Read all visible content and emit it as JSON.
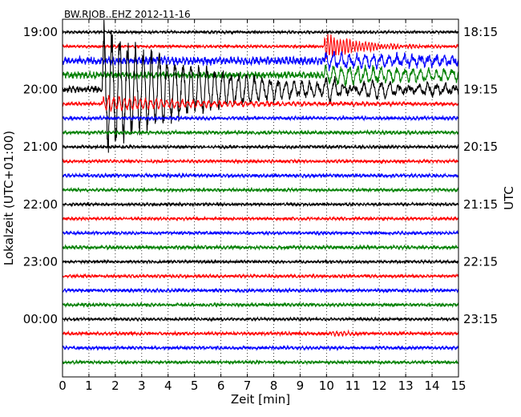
{
  "chart_data": {
    "type": "line",
    "title": "BW.RJOB..EHZ 2012-11-16",
    "xlabel": "Zeit  [min]",
    "ylabel_left": "Lokalzeit (UTC+01:00)",
    "ylabel_right": "UTC",
    "xlim": [
      0,
      15
    ],
    "x_ticks": [
      0,
      1,
      2,
      3,
      4,
      5,
      6,
      7,
      8,
      9,
      10,
      11,
      12,
      13,
      14,
      15
    ],
    "grid": "vertical dotted",
    "trace_colors": [
      "#000000",
      "#ff0000",
      "#0000ff",
      "#008000"
    ],
    "row_interval_minutes": 15,
    "left_ticks": [
      {
        "row": 0,
        "label": "19:00"
      },
      {
        "row": 4,
        "label": "20:00"
      },
      {
        "row": 8,
        "label": "21:00"
      },
      {
        "row": 12,
        "label": "22:00"
      },
      {
        "row": 16,
        "label": "23:00"
      },
      {
        "row": 20,
        "label": "00:00"
      }
    ],
    "right_ticks": [
      {
        "row": 0,
        "label": "18:15"
      },
      {
        "row": 4,
        "label": "19:15"
      },
      {
        "row": 8,
        "label": "20:15"
      },
      {
        "row": 12,
        "label": "21:15"
      },
      {
        "row": 16,
        "label": "22:15"
      },
      {
        "row": 20,
        "label": "23:15"
      }
    ],
    "rows": [
      {
        "start_local": "19:00",
        "color": "#000000",
        "noise": 1.2,
        "events": []
      },
      {
        "start_local": "19:15",
        "color": "#ff0000",
        "noise": 1.2,
        "events": [
          {
            "t_min": 9.9,
            "amp": 18,
            "decay_min": 1.4,
            "period_min": 0.12
          }
        ]
      },
      {
        "start_local": "19:30",
        "color": "#0000ff",
        "noise": 3.5,
        "events": [
          {
            "t_min": 9.9,
            "amp": 10,
            "decay_min": 6,
            "period_min": 0.3
          }
        ]
      },
      {
        "start_local": "19:45",
        "color": "#008000",
        "noise": 3.0,
        "events": [
          {
            "t_min": 9.9,
            "amp": 12,
            "decay_min": 8,
            "period_min": 0.3
          }
        ]
      },
      {
        "start_local": "20:00",
        "color": "#000000",
        "noise": 3.0,
        "events": [
          {
            "t_min": 1.5,
            "amp": 90,
            "decay_min": 3.5,
            "period_min": 0.3
          },
          {
            "t_min": 9.9,
            "amp": 10,
            "decay_min": 6,
            "period_min": 0.35
          }
        ]
      },
      {
        "start_local": "20:15",
        "color": "#ff0000",
        "noise": 1.5,
        "events": [
          {
            "t_min": 1.5,
            "amp": 10,
            "decay_min": 4,
            "period_min": 0.2
          }
        ]
      },
      {
        "start_local": "20:30",
        "color": "#0000ff",
        "noise": 1.5,
        "events": []
      },
      {
        "start_local": "20:45",
        "color": "#008000",
        "noise": 1.5,
        "events": []
      },
      {
        "start_local": "21:00",
        "color": "#000000",
        "noise": 1.3,
        "events": []
      },
      {
        "start_local": "21:15",
        "color": "#ff0000",
        "noise": 1.3,
        "events": []
      },
      {
        "start_local": "21:30",
        "color": "#0000ff",
        "noise": 1.5,
        "events": []
      },
      {
        "start_local": "21:45",
        "color": "#008000",
        "noise": 1.3,
        "events": []
      },
      {
        "start_local": "22:00",
        "color": "#000000",
        "noise": 1.2,
        "events": []
      },
      {
        "start_local": "22:15",
        "color": "#ff0000",
        "noise": 1.2,
        "events": []
      },
      {
        "start_local": "22:30",
        "color": "#0000ff",
        "noise": 1.3,
        "events": []
      },
      {
        "start_local": "22:45",
        "color": "#008000",
        "noise": 1.5,
        "events": []
      },
      {
        "start_local": "23:00",
        "color": "#000000",
        "noise": 1.2,
        "events": []
      },
      {
        "start_local": "23:15",
        "color": "#ff0000",
        "noise": 1.3,
        "events": []
      },
      {
        "start_local": "23:30",
        "color": "#0000ff",
        "noise": 1.4,
        "events": []
      },
      {
        "start_local": "23:45",
        "color": "#008000",
        "noise": 1.4,
        "events": []
      },
      {
        "start_local": "00:00",
        "color": "#000000",
        "noise": 1.2,
        "events": []
      },
      {
        "start_local": "00:15",
        "color": "#ff0000",
        "noise": 1.4,
        "events": [
          {
            "t_min": 10.2,
            "amp": 3,
            "decay_min": 0.8,
            "period_min": 0.15
          }
        ]
      },
      {
        "start_local": "00:30",
        "color": "#0000ff",
        "noise": 1.4,
        "events": []
      },
      {
        "start_local": "00:45",
        "color": "#008000",
        "noise": 1.3,
        "events": []
      }
    ]
  }
}
